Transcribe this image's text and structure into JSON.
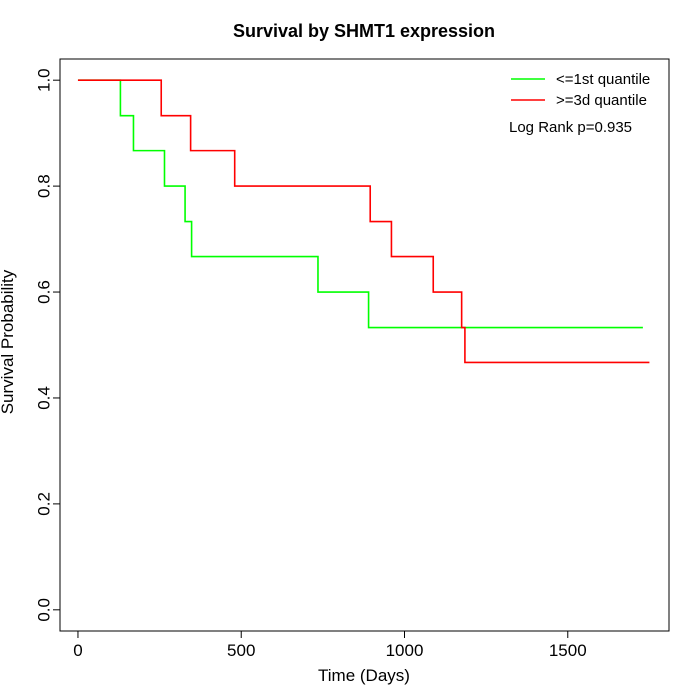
{
  "chart_data": {
    "type": "line",
    "title": "Survival by SHMT1 expression",
    "xlabel": "Time (Days)",
    "ylabel": "Survival Probability",
    "xlim": [
      -55,
      1810
    ],
    "ylim": [
      -0.04,
      1.04
    ],
    "xticks": [
      0,
      500,
      1000,
      1500
    ],
    "xtick_labels": [
      "0",
      "500",
      "1000",
      "1500"
    ],
    "yticks": [
      0.0,
      0.2,
      0.4,
      0.6,
      0.8,
      1.0
    ],
    "ytick_labels": [
      "0.0",
      "0.2",
      "0.4",
      "0.6",
      "0.8",
      "1.0"
    ],
    "grid": false,
    "legend_position": "top-right",
    "annotation": "Log Rank p=0.935",
    "series": [
      {
        "name": "<=1st quantile",
        "color": "#00ff00",
        "step": "post",
        "x": [
          0,
          130,
          170,
          265,
          328,
          348,
          735,
          890,
          1730
        ],
        "y": [
          1.0,
          0.933,
          0.867,
          0.8,
          0.733,
          0.667,
          0.6,
          0.533,
          0.533
        ]
      },
      {
        "name": ">=3d quantile",
        "color": "#ff0000",
        "step": "post",
        "x": [
          0,
          255,
          345,
          480,
          895,
          960,
          1088,
          1175,
          1185,
          1750
        ],
        "y": [
          1.0,
          0.933,
          0.867,
          0.8,
          0.733,
          0.667,
          0.6,
          0.533,
          0.467,
          0.467
        ]
      }
    ]
  }
}
